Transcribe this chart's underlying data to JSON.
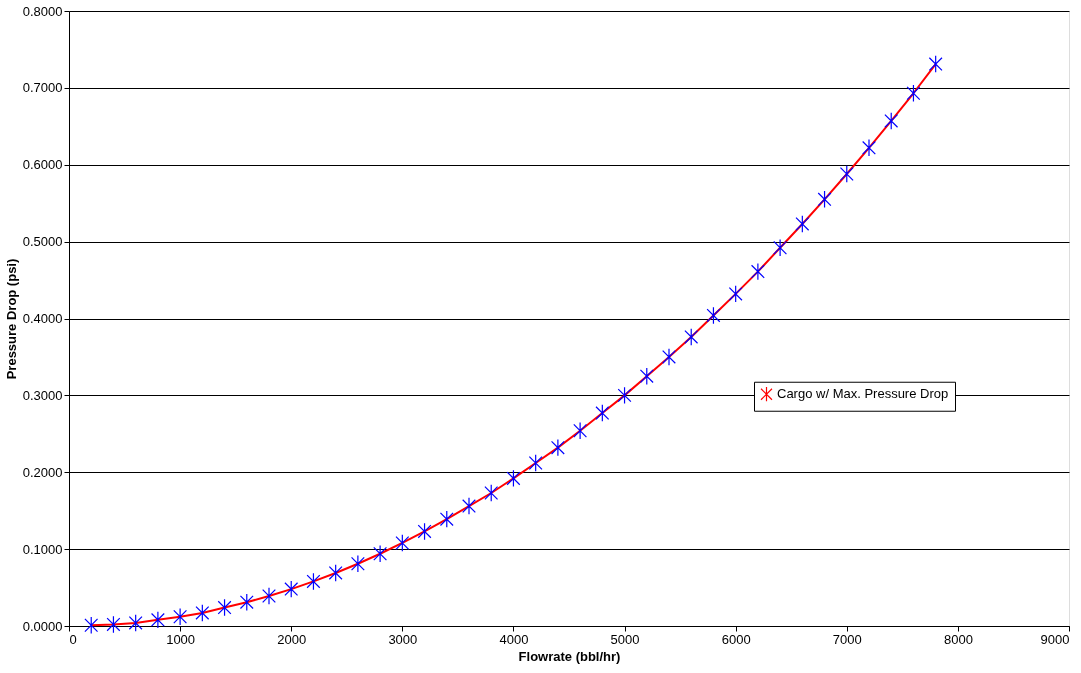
{
  "chart_data": {
    "type": "line",
    "xlabel": "Flowrate (bbl/hr)",
    "ylabel": "Pressure Drop (psi)",
    "x": [
      200,
      400,
      600,
      800,
      1000,
      1200,
      1400,
      1600,
      1800,
      2000,
      2200,
      2400,
      2600,
      2800,
      3000,
      3200,
      3400,
      3600,
      3800,
      4000,
      4200,
      4400,
      4600,
      4800,
      5000,
      5200,
      5400,
      5600,
      5800,
      6000,
      6200,
      6400,
      6600,
      6800,
      7000,
      7200,
      7400,
      7600,
      7800
    ],
    "series": [
      {
        "name": "Cargo w/ Max. Pressure Drop",
        "color": "#ff0000",
        "colors": [
          "#0000ff",
          "#0000ff",
          "#0000ff",
          "#0000ff",
          "#0000ff",
          "#0000ff",
          "#0000ff",
          "#0000ff",
          "#0000ff",
          "#0000ff",
          "#0000ff",
          "#0000ff",
          "#0000ff",
          "#0000ff",
          "#0000ff",
          "#0000ff",
          "#0000ff",
          "#0000ff",
          "#0000ff",
          "#0000ff",
          "#0000ff",
          "#0000ff",
          "#0000ff",
          "#0000ff",
          "#0000ff",
          "#0000ff",
          "#0000ff",
          "#0000ff",
          "#0000ff",
          "#0000ff",
          "#0000ff",
          "#0000ff",
          "#0000ff",
          "#0000ff",
          "#0000ff",
          "#0000ff",
          "#0000ff",
          "#0000ff",
          "#0000ff"
        ],
        "values": [
          0.001,
          0.002,
          0.004,
          0.008,
          0.012,
          0.017,
          0.024,
          0.031,
          0.039,
          0.048,
          0.058,
          0.069,
          0.081,
          0.094,
          0.108,
          0.123,
          0.139,
          0.156,
          0.173,
          0.192,
          0.212,
          0.232,
          0.254,
          0.277,
          0.3,
          0.325,
          0.35,
          0.376,
          0.404,
          0.432,
          0.461,
          0.492,
          0.523,
          0.555,
          0.588,
          0.622,
          0.657,
          0.693,
          0.731
        ]
      }
    ],
    "xlim": [
      0,
      9000
    ],
    "xticks": [
      0,
      1000,
      2000,
      3000,
      4000,
      5000,
      6000,
      7000,
      8000,
      9000
    ],
    "ylim": [
      0,
      0.8
    ],
    "yticks": [
      {
        "value": 0,
        "label": "0.0000"
      },
      {
        "value": 0.1,
        "label": "0.1000"
      },
      {
        "value": 0.2,
        "label": "0.2000"
      },
      {
        "value": 0.3,
        "label": "0.3000"
      },
      {
        "value": 0.4,
        "label": "0.4000"
      },
      {
        "value": 0.5,
        "label": "0.5000"
      },
      {
        "value": 0.6,
        "label": "0.6000"
      },
      {
        "value": 0.7,
        "label": "0.7000"
      },
      {
        "value": 0.8,
        "label": "0.8000"
      }
    ],
    "grid": "y",
    "legend": "right",
    "marker": "cross",
    "line_style": "solid"
  }
}
